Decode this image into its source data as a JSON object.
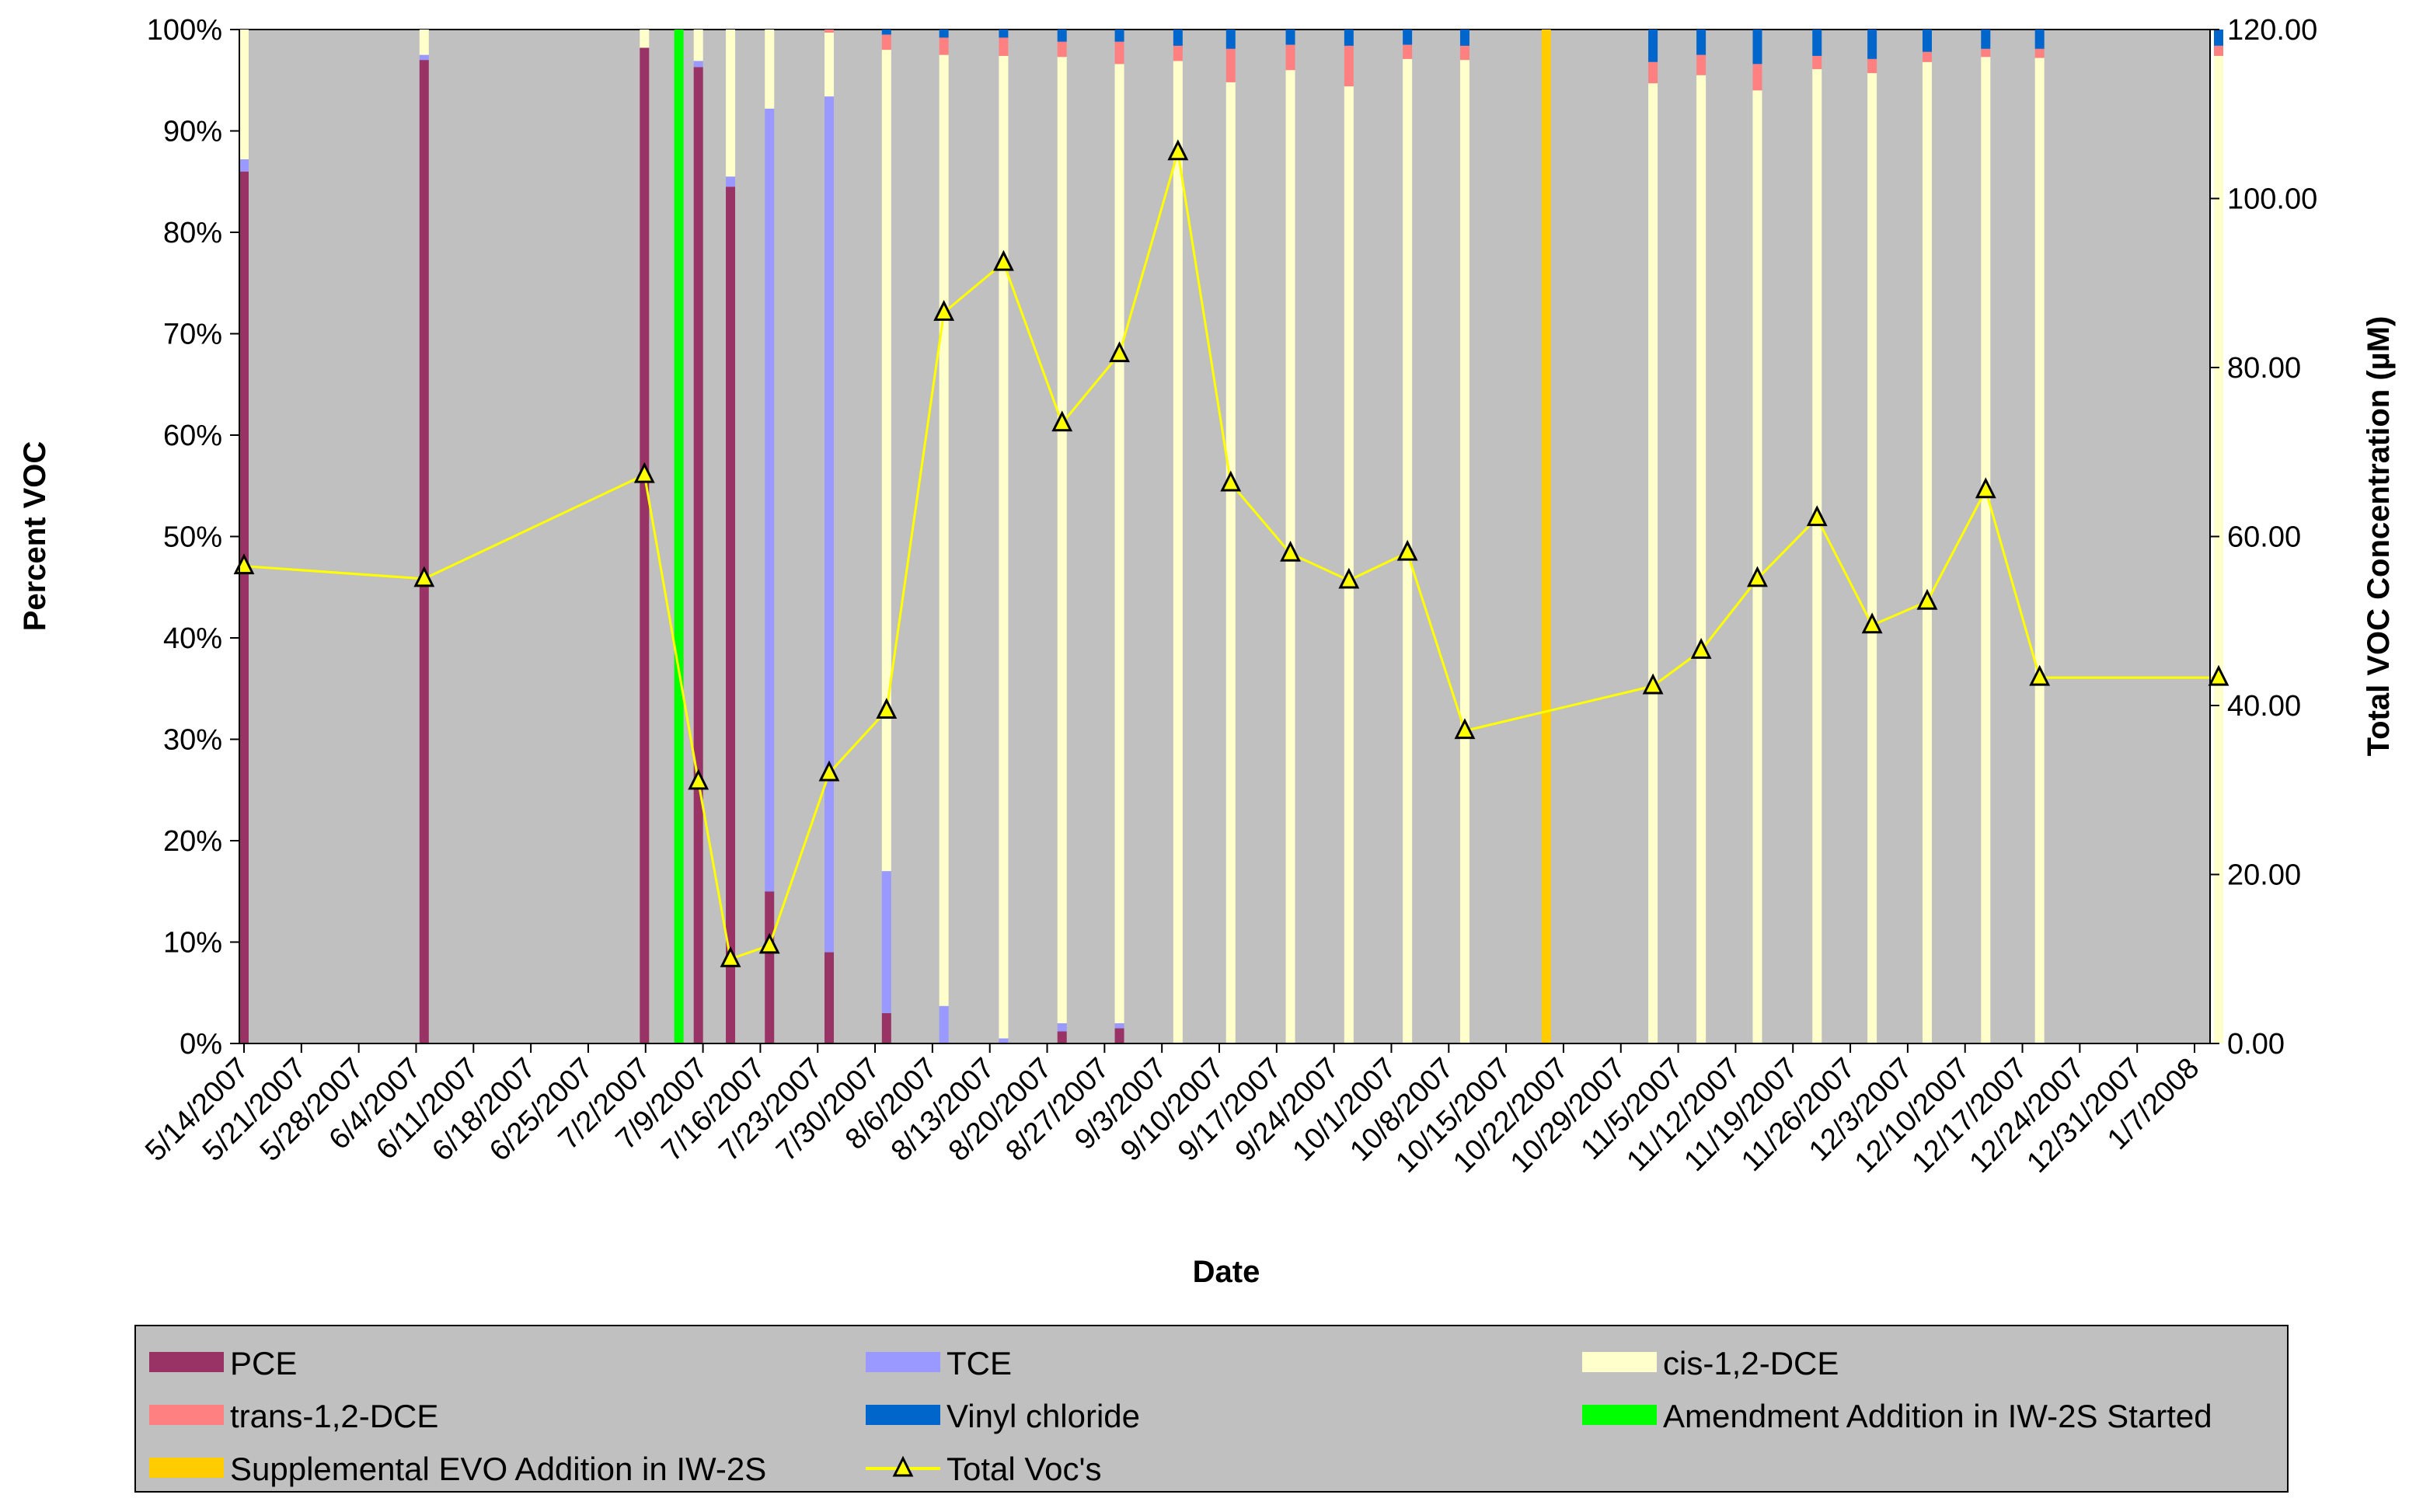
{
  "chart_data": {
    "type": "bar+line",
    "title": "",
    "xlabel": "Date",
    "ylabel_left": "Percent VOC",
    "ylabel_right": "Total VOC Concentration (µM)",
    "ylim_left": [
      0,
      100
    ],
    "ylim_right": [
      0,
      120
    ],
    "y_left_ticks": [
      "0%",
      "10%",
      "20%",
      "30%",
      "40%",
      "50%",
      "60%",
      "70%",
      "80%",
      "90%",
      "100%"
    ],
    "y_right_ticks": [
      "0.00",
      "20.00",
      "40.00",
      "60.00",
      "80.00",
      "100.00",
      "120.00"
    ],
    "x_tick_labels": [
      "5/14/2007",
      "5/21/2007",
      "5/28/2007",
      "6/4/2007",
      "6/11/2007",
      "6/18/2007",
      "6/25/2007",
      "7/2/2007",
      "7/9/2007",
      "7/16/2007",
      "7/23/2007",
      "7/30/2007",
      "8/6/2007",
      "8/13/2007",
      "8/20/2007",
      "8/27/2007",
      "9/3/2007",
      "9/10/2007",
      "9/17/2007",
      "9/24/2007",
      "10/1/2007",
      "10/8/2007",
      "10/15/2007",
      "10/22/2007",
      "10/29/2007",
      "11/5/2007",
      "11/12/2007",
      "11/19/2007",
      "11/26/2007",
      "12/3/2007",
      "12/10/2007",
      "12/17/2007",
      "12/24/2007",
      "12/31/2007",
      "1/7/2008"
    ],
    "x_range_weeks": [
      0,
      34.5
    ],
    "series_colors": {
      "PCE": "#993366",
      "TCE": "#9999ff",
      "cis-1,2-DCE": "#ffffcc",
      "trans-1,2-DCE": "#ff8080",
      "Vinyl chloride": "#0066cc",
      "Amendment Addition in IW-2S Started": "#00ff00",
      "Supplemental EVO Addition in IW-2S": "#ffcc00",
      "Total Voc's": "#ffff00",
      "plot_background": "#c0c0c0"
    },
    "samples": [
      {
        "date": "5/14/2007",
        "w": 0.0,
        "PCE": 86,
        "TCE": 1.2,
        "cisDCE": 12.8,
        "transDCE": 0,
        "VC": 0,
        "total": 56.5
      },
      {
        "date": "6/5/2007",
        "w": 3.14,
        "PCE": 97,
        "TCE": 0.5,
        "cisDCE": 2.5,
        "transDCE": 0,
        "VC": 0,
        "total": 55.0
      },
      {
        "date": "7/3/2007",
        "w": 6.98,
        "PCE": 98.2,
        "TCE": 0,
        "cisDCE": 1.8,
        "transDCE": 0,
        "VC": 0,
        "total": 67.3
      },
      {
        "date": "7/10/2007",
        "w": 7.92,
        "PCE": 96.3,
        "TCE": 0.6,
        "cisDCE": 3.1,
        "transDCE": 0,
        "VC": 0,
        "total": 31.0
      },
      {
        "date": "7/14/2007",
        "w": 8.48,
        "PCE": 84.5,
        "TCE": 1.0,
        "cisDCE": 14.5,
        "transDCE": 0,
        "VC": 0,
        "total": 10.0
      },
      {
        "date": "7/19/2007",
        "w": 9.16,
        "PCE": 15,
        "TCE": 77.2,
        "cisDCE": 7.8,
        "transDCE": 0,
        "VC": 0,
        "total": 11.6
      },
      {
        "date": "7/26/2007",
        "w": 10.2,
        "PCE": 9,
        "TCE": 84.4,
        "cisDCE": 6.3,
        "transDCE": 0.3,
        "VC": 0,
        "total": 32.0
      },
      {
        "date": "8/2/2007",
        "w": 11.2,
        "PCE": 3,
        "TCE": 14,
        "cisDCE": 81,
        "transDCE": 1.5,
        "VC": 0.5,
        "total": 39.4
      },
      {
        "date": "8/9/2007",
        "w": 12.2,
        "PCE": 0,
        "TCE": 3.7,
        "cisDCE": 93.8,
        "transDCE": 1.7,
        "VC": 0.8,
        "total": 86.5
      },
      {
        "date": "8/16/2007",
        "w": 13.24,
        "PCE": 0,
        "TCE": 0.5,
        "cisDCE": 96.9,
        "transDCE": 1.8,
        "VC": 0.8,
        "total": 92.4
      },
      {
        "date": "8/23/2007",
        "w": 14.26,
        "PCE": 1.2,
        "TCE": 0.8,
        "cisDCE": 95.3,
        "transDCE": 1.5,
        "VC": 1.2,
        "total": 73.4
      },
      {
        "date": "8/30/2007",
        "w": 15.26,
        "PCE": 1.5,
        "TCE": 0.5,
        "cisDCE": 94.6,
        "transDCE": 2.2,
        "VC": 1.2,
        "total": 81.6
      },
      {
        "date": "9/6/2007",
        "w": 16.28,
        "PCE": 0,
        "TCE": 0,
        "cisDCE": 96.9,
        "transDCE": 1.5,
        "VC": 1.6,
        "total": 105.5
      },
      {
        "date": "9/13/2007",
        "w": 17.2,
        "PCE": 0,
        "TCE": 0,
        "cisDCE": 94.8,
        "transDCE": 3.3,
        "VC": 1.9,
        "total": 66.3
      },
      {
        "date": "9/21/2007",
        "w": 18.24,
        "PCE": 0,
        "TCE": 0,
        "cisDCE": 96.0,
        "transDCE": 2.5,
        "VC": 1.5,
        "total": 58.0
      },
      {
        "date": "9/28/2007",
        "w": 19.26,
        "PCE": 0,
        "TCE": 0,
        "cisDCE": 94.4,
        "transDCE": 4.0,
        "VC": 1.6,
        "total": 54.8
      },
      {
        "date": "10/5/2007",
        "w": 20.28,
        "PCE": 0,
        "TCE": 0,
        "cisDCE": 97.1,
        "transDCE": 1.4,
        "VC": 1.5,
        "total": 58.1
      },
      {
        "date": "10/12/2007",
        "w": 21.28,
        "PCE": 0,
        "TCE": 0,
        "cisDCE": 97.0,
        "transDCE": 1.4,
        "VC": 1.6,
        "total": 37.0
      },
      {
        "date": "11/2/2007",
        "w": 24.56,
        "PCE": 0,
        "TCE": 0,
        "cisDCE": 94.7,
        "transDCE": 2.1,
        "VC": 3.2,
        "total": 42.3
      },
      {
        "date": "11/9/2007",
        "w": 25.4,
        "PCE": 0,
        "TCE": 0,
        "cisDCE": 95.5,
        "transDCE": 2.0,
        "VC": 2.5,
        "total": 46.5
      },
      {
        "date": "11/16/2007",
        "w": 26.38,
        "PCE": 0,
        "TCE": 0,
        "cisDCE": 94.0,
        "transDCE": 2.6,
        "VC": 3.4,
        "total": 55.0
      },
      {
        "date": "11/23/2007",
        "w": 27.42,
        "PCE": 0,
        "TCE": 0,
        "cisDCE": 96.1,
        "transDCE": 1.3,
        "VC": 2.6,
        "total": 62.2
      },
      {
        "date": "11/30/2007",
        "w": 28.38,
        "PCE": 0,
        "TCE": 0,
        "cisDCE": 95.7,
        "transDCE": 1.4,
        "VC": 2.9,
        "total": 49.5
      },
      {
        "date": "12/6/2007",
        "w": 29.34,
        "PCE": 0,
        "TCE": 0,
        "cisDCE": 96.8,
        "transDCE": 1.0,
        "VC": 2.2,
        "total": 52.3
      },
      {
        "date": "12/13/2007",
        "w": 30.36,
        "PCE": 0,
        "TCE": 0,
        "cisDCE": 97.3,
        "transDCE": 0.8,
        "VC": 1.9,
        "total": 65.5
      },
      {
        "date": "12/20/2007",
        "w": 31.3,
        "PCE": 0,
        "TCE": 0,
        "cisDCE": 97.2,
        "transDCE": 0.9,
        "VC": 1.9,
        "total": 43.3
      },
      {
        "date": "1/8/2008",
        "w": 34.42,
        "PCE": 0,
        "TCE": 0,
        "cisDCE": 97.4,
        "transDCE": 1.0,
        "VC": 1.6,
        "total": 43.3
      }
    ],
    "events": [
      {
        "name": "Amendment Addition in IW-2S Started",
        "w": 7.58,
        "color": "#00ff00"
      },
      {
        "name": "Supplemental EVO Addition in IW-2S",
        "w": 22.7,
        "color": "#ffcc00"
      }
    ],
    "legend": {
      "placement": "bottom",
      "entries": [
        {
          "label": "PCE",
          "kind": "box",
          "color": "#993366"
        },
        {
          "label": "TCE",
          "kind": "box",
          "color": "#9999ff"
        },
        {
          "label": "cis-1,2-DCE",
          "kind": "box",
          "color": "#ffffcc"
        },
        {
          "label": "trans-1,2-DCE",
          "kind": "box",
          "color": "#ff8080"
        },
        {
          "label": "Vinyl chloride",
          "kind": "box",
          "color": "#0066cc"
        },
        {
          "label": "Amendment Addition in IW-2S Started",
          "kind": "box",
          "color": "#00ff00"
        },
        {
          "label": "Supplemental EVO Addition in IW-2S",
          "kind": "box",
          "color": "#ffcc00"
        },
        {
          "label": "Total Voc's",
          "kind": "line",
          "color": "#ffff00"
        }
      ]
    }
  }
}
